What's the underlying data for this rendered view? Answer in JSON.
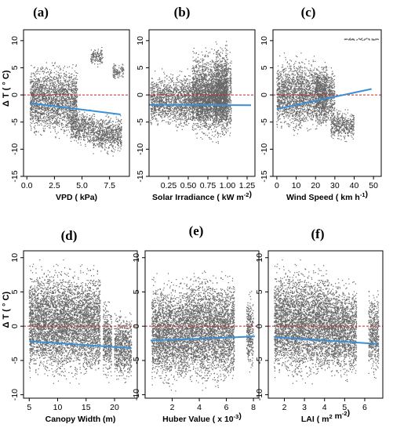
{
  "figure": {
    "y_axis_label": "Δ T ( ° C)"
  },
  "chart_data": [
    {
      "type": "scatter",
      "panel_label": "(a)",
      "xlabel": "VPD ( kPa)",
      "ylabel": "Δ T ( ° C)",
      "xlim": [
        -0.3,
        9.3
      ],
      "ylim": [
        -15,
        12
      ],
      "xticks": [
        "0.0",
        "2.5",
        "5.0",
        "7.5"
      ],
      "xtick_values": [
        0,
        2.5,
        5,
        7.5
      ],
      "yticks": [
        "10",
        "5",
        "0",
        "-5",
        "-10",
        "-15"
      ],
      "ytick_values": [
        10,
        5,
        0,
        -5,
        -10,
        -15
      ],
      "zero_line": 0,
      "fit_line": {
        "x": [
          0.3,
          8.5
        ],
        "y": [
          -1.5,
          -3.6
        ]
      },
      "point_clusters": [
        {
          "x": [
            0.3,
            4.6
          ],
          "y": [
            -9,
            7
          ]
        },
        {
          "x": [
            4.0,
            6.0
          ],
          "y": [
            -10,
            -2
          ]
        },
        {
          "x": [
            6.0,
            8.6
          ],
          "y": [
            -11.5,
            -3
          ]
        },
        {
          "x": [
            5.8,
            6.9
          ],
          "y": [
            5,
            9
          ]
        },
        {
          "x": [
            7.8,
            8.8
          ],
          "y": [
            2.5,
            6
          ]
        }
      ],
      "marker_color": "#666666",
      "line_color": "#3b8fd6",
      "zero_line_color": "#cc2222"
    },
    {
      "type": "scatter",
      "panel_label": "(b)",
      "xlabel": "Solar Irradiance ( kW m-2)",
      "ylabel": "",
      "xlim": [
        0.0,
        1.35
      ],
      "ylim": [
        -15,
        12
      ],
      "xticks": [
        "0.25",
        "0.50",
        "0.75",
        "1.00",
        "1.25"
      ],
      "xtick_values": [
        0.25,
        0.5,
        0.75,
        1.0,
        1.25
      ],
      "yticks": [
        "10",
        "5",
        "0",
        "-5",
        "-10",
        "-15"
      ],
      "ytick_values": [
        10,
        5,
        0,
        -5,
        -10,
        -15
      ],
      "zero_line": 0,
      "fit_line": {
        "x": [
          0.0,
          1.3
        ],
        "y": [
          -1.8,
          -1.9
        ]
      },
      "point_clusters": [
        {
          "x": [
            0.02,
            1.0
          ],
          "y": [
            -7,
            5
          ]
        },
        {
          "x": [
            0.55,
            1.05
          ],
          "y": [
            -10,
            10
          ]
        },
        {
          "x": [
            0.85,
            1.0
          ],
          "y": [
            -8,
            11
          ]
        }
      ],
      "marker_color": "#666666",
      "line_color": "#3b8fd6",
      "zero_line_color": "#cc2222"
    },
    {
      "type": "scatter",
      "panel_label": "(c)",
      "xlabel": "Wind Speed ( km h-1)",
      "ylabel": "",
      "xlim": [
        -2,
        54
      ],
      "ylim": [
        -15,
        12
      ],
      "xticks": [
        "0",
        "10",
        "20",
        "30",
        "40",
        "50"
      ],
      "xtick_values": [
        0,
        10,
        20,
        30,
        40,
        50
      ],
      "yticks": [
        "10",
        "5",
        "0",
        "-5",
        "-10",
        "-15"
      ],
      "ytick_values": [
        10,
        5,
        0,
        -5,
        -10,
        -15
      ],
      "zero_line": 0,
      "fit_line": {
        "x": [
          0,
          49
        ],
        "y": [
          -2.6,
          1.1
        ]
      },
      "point_clusters": [
        {
          "x": [
            0,
            26
          ],
          "y": [
            -8,
            8
          ]
        },
        {
          "x": [
            20,
            30
          ],
          "y": [
            -6,
            6
          ]
        },
        {
          "x": [
            28,
            40
          ],
          "y": [
            -9,
            -2
          ]
        },
        {
          "x": [
            35,
            53
          ],
          "y": [
            10,
            10.5
          ]
        }
      ],
      "marker_color": "#666666",
      "line_color": "#3b8fd6",
      "zero_line_color": "#cc2222"
    },
    {
      "type": "scatter",
      "panel_label": "(d)",
      "xlabel": "Canopy Width (m)",
      "ylabel": "Δ T ( ° C)",
      "xlim": [
        4,
        24
      ],
      "ylim": [
        -10.5,
        11
      ],
      "xticks": [
        "5",
        "10",
        "15",
        "20"
      ],
      "xtick_values": [
        5,
        10,
        15,
        20
      ],
      "yticks": [
        "10",
        "5",
        "0",
        "-5",
        "-10"
      ],
      "ytick_values": [
        10,
        5,
        0,
        -5,
        -10
      ],
      "zero_line": 0,
      "fit_line": {
        "x": [
          5,
          23
        ],
        "y": [
          -2.2,
          -3.2
        ]
      },
      "point_clusters": [
        {
          "x": [
            5,
            17.5
          ],
          "y": [
            -9,
            10
          ]
        },
        {
          "x": [
            18,
            19.5
          ],
          "y": [
            -9,
            5
          ]
        },
        {
          "x": [
            20,
            23
          ],
          "y": [
            -9,
            3
          ]
        }
      ],
      "marker_color": "#666666",
      "line_color": "#3b8fd6",
      "zero_line_color": "#cc2222"
    },
    {
      "type": "scatter",
      "panel_label": "(e)",
      "xlabel": "Huber Value ( x 10-3)",
      "ylabel": "",
      "xlim": [
        0,
        8.4
      ],
      "ylim": [
        -10.5,
        11
      ],
      "xticks": [
        "2",
        "4",
        "6",
        "8"
      ],
      "xtick_values": [
        2,
        4,
        6,
        8
      ],
      "yticks": [
        "10",
        "5",
        "0",
        "-5",
        "-10"
      ],
      "ytick_values": [
        10,
        5,
        0,
        -5,
        -10
      ],
      "zero_line": 0,
      "fit_line": {
        "x": [
          0.4,
          8.1
        ],
        "y": [
          -2.1,
          -1.5
        ]
      },
      "point_clusters": [
        {
          "x": [
            0.5,
            3.0
          ],
          "y": [
            -10,
            8
          ]
        },
        {
          "x": [
            3.0,
            6.6
          ],
          "y": [
            -10,
            9
          ]
        },
        {
          "x": [
            7.5,
            8.0
          ],
          "y": [
            -8,
            6
          ]
        }
      ],
      "marker_color": "#666666",
      "line_color": "#3b8fd6",
      "zero_line_color": "#cc2222"
    },
    {
      "type": "scatter",
      "panel_label": "(f)",
      "xlabel": "LAI ( m2 m-2)",
      "ylabel": "",
      "xlim": [
        1.2,
        6.9
      ],
      "ylim": [
        -10.5,
        11
      ],
      "xticks": [
        "2",
        "3",
        "4",
        "5",
        "6"
      ],
      "xtick_values": [
        2,
        3,
        4,
        5,
        6
      ],
      "yticks": [
        "10",
        "5",
        "0",
        "-5",
        "-10"
      ],
      "ytick_values": [
        10,
        5,
        0,
        -5,
        -10
      ],
      "zero_line": 0,
      "fit_line": {
        "x": [
          1.5,
          6.7
        ],
        "y": [
          -1.6,
          -2.6
        ]
      },
      "point_clusters": [
        {
          "x": [
            1.5,
            4.2
          ],
          "y": [
            -9,
            10
          ]
        },
        {
          "x": [
            4.2,
            5.6
          ],
          "y": [
            -9,
            8
          ]
        },
        {
          "x": [
            6.2,
            6.7
          ],
          "y": [
            -8,
            6
          ]
        }
      ],
      "marker_color": "#666666",
      "line_color": "#3b8fd6",
      "zero_line_color": "#cc2222"
    }
  ]
}
